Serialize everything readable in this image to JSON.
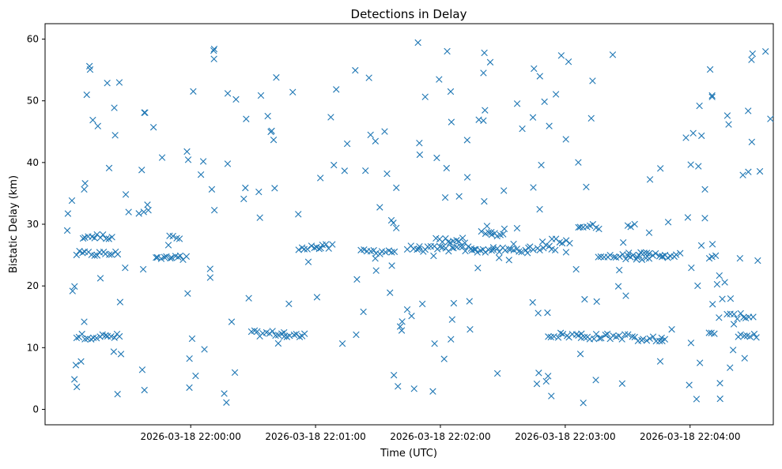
{
  "chart_data": {
    "type": "scatter",
    "title": "Detections in Delay",
    "xlabel": "Time (UTC)",
    "ylabel": "Bistatic Delay (km)",
    "marker": "x",
    "color": "#1f77b4",
    "grid": false,
    "legend": "none",
    "x_range_seconds_from_first_tick": [
      -70,
      280
    ],
    "ylim": [
      -2.5,
      62.5
    ],
    "xticks": [
      "2026-03-18 22:00:00",
      "2026-03-18 22:01:00",
      "2026-03-18 22:02:00",
      "2026-03-18 22:03:00",
      "2026-03-18 22:04:00"
    ],
    "yticks": [
      0,
      10,
      20,
      30,
      40,
      50,
      60
    ],
    "tracks": [
      {
        "y": 25.2,
        "t_start": -55,
        "t_end": -35
      },
      {
        "y": 28.0,
        "t_start": -52,
        "t_end": -38
      },
      {
        "y": 11.8,
        "t_start": -55,
        "t_end": -34
      },
      {
        "y": 24.5,
        "t_start": -17,
        "t_end": -2
      },
      {
        "y": 27.8,
        "t_start": -10,
        "t_end": -5
      },
      {
        "y": 12.3,
        "t_start": 29,
        "t_end": 45
      },
      {
        "y": 11.9,
        "t_start": 45,
        "t_end": 55
      },
      {
        "y": 26.3,
        "t_start": 52,
        "t_end": 68
      },
      {
        "y": 25.6,
        "t_start": 82,
        "t_end": 98
      },
      {
        "y": 26.1,
        "t_start": 104,
        "t_end": 110
      },
      {
        "y": 26.0,
        "t_start": 110,
        "t_end": 135
      },
      {
        "y": 27.4,
        "t_start": 118,
        "t_end": 132
      },
      {
        "y": 25.8,
        "t_start": 135,
        "t_end": 162
      },
      {
        "y": 28.4,
        "t_start": 140,
        "t_end": 150
      },
      {
        "y": 26.2,
        "t_start": 162,
        "t_end": 175
      },
      {
        "y": 27.3,
        "t_start": 174,
        "t_end": 182
      },
      {
        "y": 12.0,
        "t_start": 172,
        "t_end": 188
      },
      {
        "y": 11.8,
        "t_start": 188,
        "t_end": 210
      },
      {
        "y": 24.7,
        "t_start": 196,
        "t_end": 220
      },
      {
        "y": 29.6,
        "t_start": 186,
        "t_end": 196
      },
      {
        "y": 30.0,
        "t_start": 210,
        "t_end": 213
      },
      {
        "y": 11.5,
        "t_start": 212,
        "t_end": 228
      },
      {
        "y": 25.0,
        "t_start": 215,
        "t_end": 235
      },
      {
        "y": 12.1,
        "t_start": 249,
        "t_end": 252
      },
      {
        "y": 24.8,
        "t_start": 249,
        "t_end": 252
      },
      {
        "y": 15.1,
        "t_start": 258,
        "t_end": 270
      },
      {
        "y": 12.0,
        "t_start": 263,
        "t_end": 272
      }
    ],
    "noise_points": 260,
    "noise_t_range": [
      -60,
      280
    ],
    "noise_y_range": [
      1,
      60
    ]
  }
}
